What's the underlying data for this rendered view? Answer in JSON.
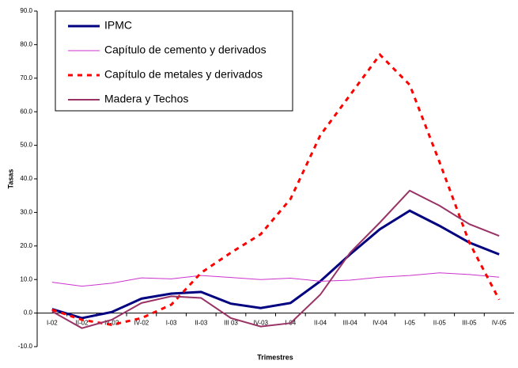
{
  "chart_data": {
    "type": "line",
    "x_label": "Trimestres",
    "y_label": "Tasas",
    "categories": [
      "I-02",
      "II-02",
      "III-02",
      "IV-02",
      "I-03",
      "II-03",
      "III 03",
      "IV-03",
      "I-04",
      "II-04",
      "III-04",
      "IV-04",
      "I-05",
      "II-05",
      "III-05",
      "IV-05"
    ],
    "series": [
      {
        "name": "IPMC",
        "color": "#000080",
        "width": 3,
        "dash": false,
        "values": [
          1.2,
          -1.5,
          0.3,
          4.3,
          5.8,
          6.3,
          2.8,
          1.5,
          3.0,
          9.5,
          17.5,
          25.0,
          30.5,
          26.0,
          21.0,
          17.5
        ]
      },
      {
        "name": "Capítulo de cemento y derivados",
        "color": "#cc33cc",
        "width": 1,
        "dash": false,
        "values": [
          9.2,
          8.0,
          8.9,
          10.5,
          10.2,
          11.2,
          10.6,
          10.0,
          10.4,
          9.5,
          9.8,
          10.7,
          11.2,
          12.0,
          11.5,
          10.7
        ]
      },
      {
        "name": "Capítulo de metales y derivados",
        "color": "#ff0000",
        "width": 3,
        "dash": true,
        "values": [
          1.0,
          -2.0,
          -3.5,
          -1.5,
          2.5,
          12.0,
          18.0,
          23.5,
          34.0,
          53.0,
          65.0,
          77.0,
          68.0,
          45.0,
          21.0,
          4.0
        ]
      },
      {
        "name": "Madera y Techos",
        "color": "#993366",
        "width": 2,
        "dash": false,
        "values": [
          0.5,
          -4.5,
          -2.0,
          3.0,
          5.0,
          4.5,
          -1.5,
          -4.0,
          -3.0,
          5.5,
          18.0,
          27.0,
          36.5,
          32.0,
          26.5,
          23.0
        ]
      }
    ],
    "ylim": [
      -10,
      90
    ],
    "yticks": [
      {
        "value": -10,
        "label": "-10.0"
      },
      {
        "value": 0,
        "label": "0.0"
      },
      {
        "value": 10,
        "label": "10.0"
      },
      {
        "value": 20,
        "label": "20.0"
      },
      {
        "value": 30,
        "label": "30.0"
      },
      {
        "value": 40,
        "label": "40.0"
      },
      {
        "value": 50,
        "label": "50.0"
      },
      {
        "value": 60,
        "label": "60.0"
      },
      {
        "value": 70,
        "label": "70.0"
      },
      {
        "value": 80,
        "label": "80.0"
      },
      {
        "value": 90,
        "label": "90.0"
      }
    ],
    "legend": "top-left"
  }
}
